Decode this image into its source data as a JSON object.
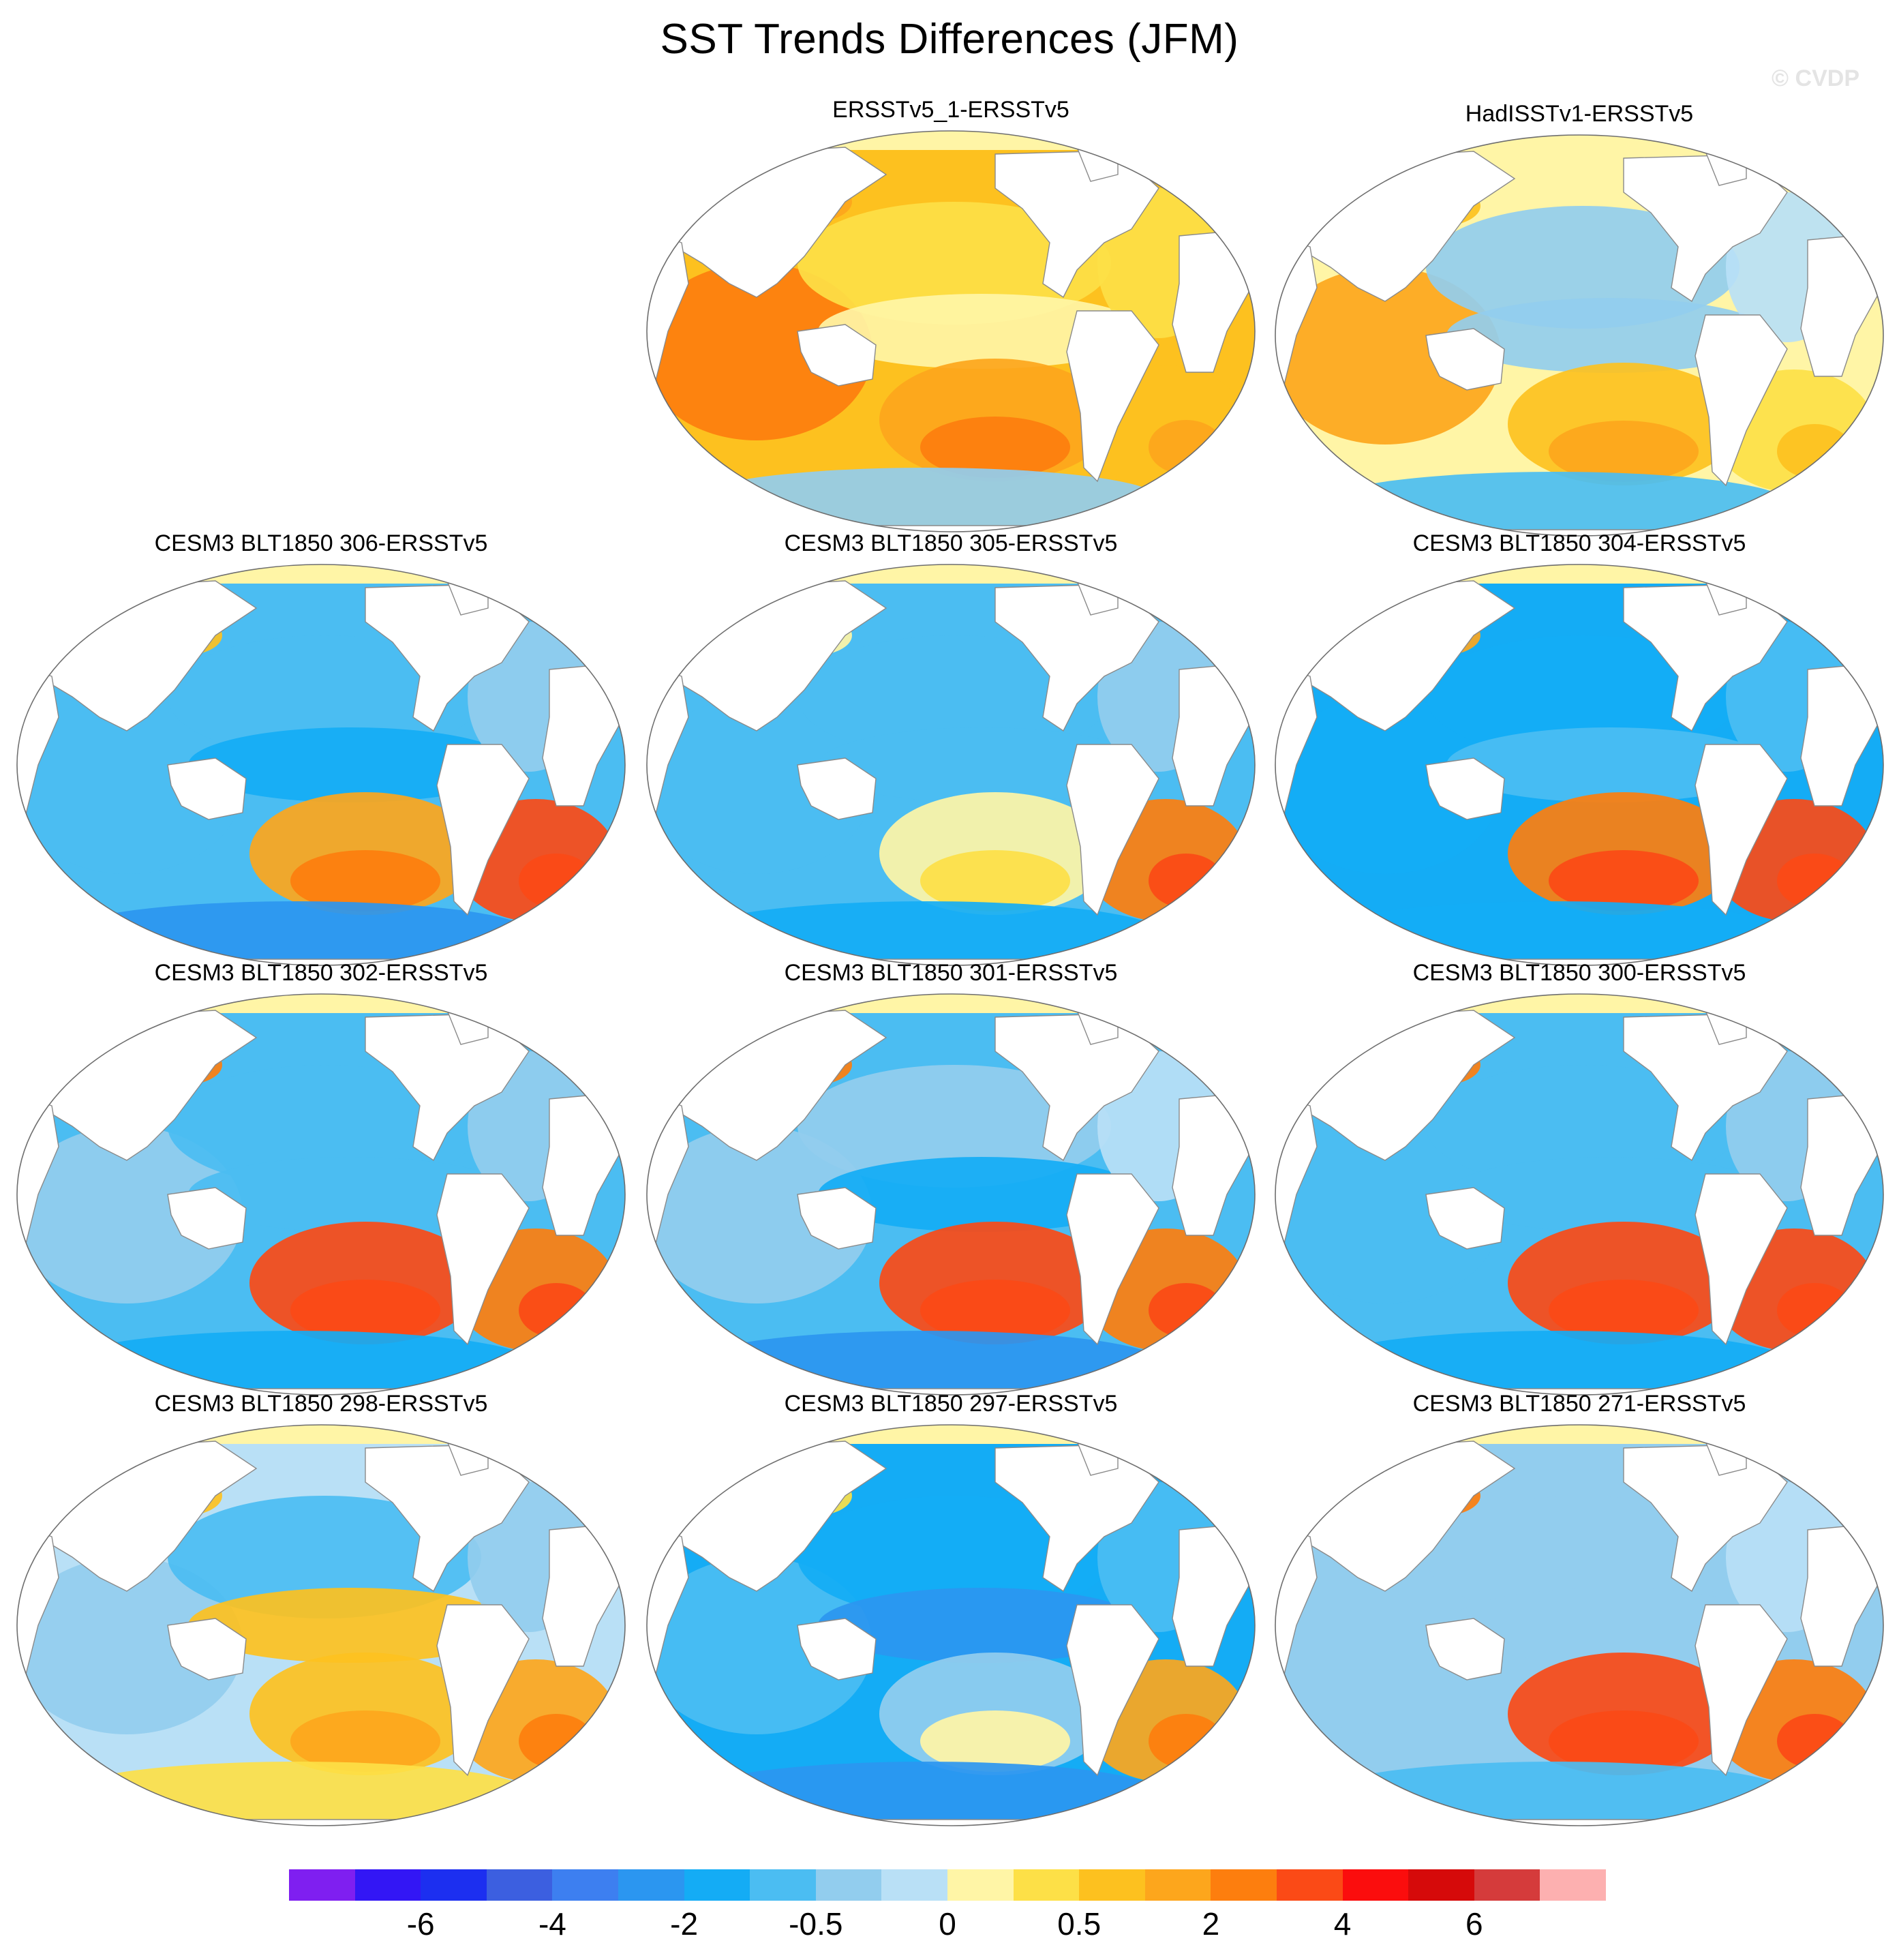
{
  "figure": {
    "title": "SST Trends Differences (JFM)",
    "credit": "© CVDP"
  },
  "panels": [
    {
      "label": "ERSSTv5_1-ERSSTv5",
      "scheme": [
        0.7,
        0.2,
        0.6,
        0.0,
        0.3
      ]
    },
    {
      "label": "HadISSTv1-ERSSTv5",
      "scheme": [
        0.5,
        -0.3,
        0.4,
        -0.2,
        0.2
      ]
    },
    {
      "label": "CESM3 BLT1850 306-ERSSTv5",
      "scheme": [
        -0.4,
        -0.5,
        0.5,
        -0.6,
        0.9
      ]
    },
    {
      "label": "CESM3 BLT1850 305-ERSSTv5",
      "scheme": [
        -0.4,
        -0.4,
        0.0,
        -0.5,
        0.8
      ]
    },
    {
      "label": "CESM3 BLT1850 304-ERSSTv5",
      "scheme": [
        -0.6,
        -0.7,
        0.7,
        -0.5,
        0.9
      ]
    },
    {
      "label": "CESM3 BLT1850 302-ERSSTv5",
      "scheme": [
        -0.3,
        -0.4,
        1.0,
        -0.5,
        0.8
      ]
    },
    {
      "label": "CESM3 BLT1850 301-ERSSTv5",
      "scheme": [
        -0.3,
        -0.3,
        0.9,
        -0.6,
        0.8
      ]
    },
    {
      "label": "CESM3 BLT1850 300-ERSSTv5",
      "scheme": [
        -0.5,
        -0.4,
        1.0,
        -0.5,
        0.9
      ]
    },
    {
      "label": "CESM3 BLT1850 298-ERSSTv5",
      "scheme": [
        -0.3,
        -0.4,
        0.4,
        0.3,
        0.6
      ]
    },
    {
      "label": "CESM3 BLT1850 297-ERSSTv5",
      "scheme": [
        -0.5,
        -0.6,
        -0.3,
        -0.8,
        0.5
      ]
    },
    {
      "label": "CESM3 BLT1850 271-ERSSTv5",
      "scheme": [
        -0.3,
        -0.2,
        0.9,
        -0.3,
        0.7
      ]
    }
  ],
  "colorbar": {
    "colors": [
      "#7f1ff0",
      "#3316f5",
      "#1c2ff0",
      "#3c5fe0",
      "#3d7ff0",
      "#2b96f0",
      "#14acf5",
      "#4bbdf2",
      "#92cdee",
      "#b9e0f6",
      "#fff5a6",
      "#fde047",
      "#fdc11f",
      "#fda61c",
      "#fd7e0e",
      "#fb4a16",
      "#fb0d0d",
      "#d60a0a",
      "#d53b3b",
      "#fdb0b0"
    ],
    "tick_labels": [
      "-6",
      "-4",
      "-2",
      "-0.5",
      "0",
      "0.5",
      "2",
      "4",
      "6"
    ]
  }
}
